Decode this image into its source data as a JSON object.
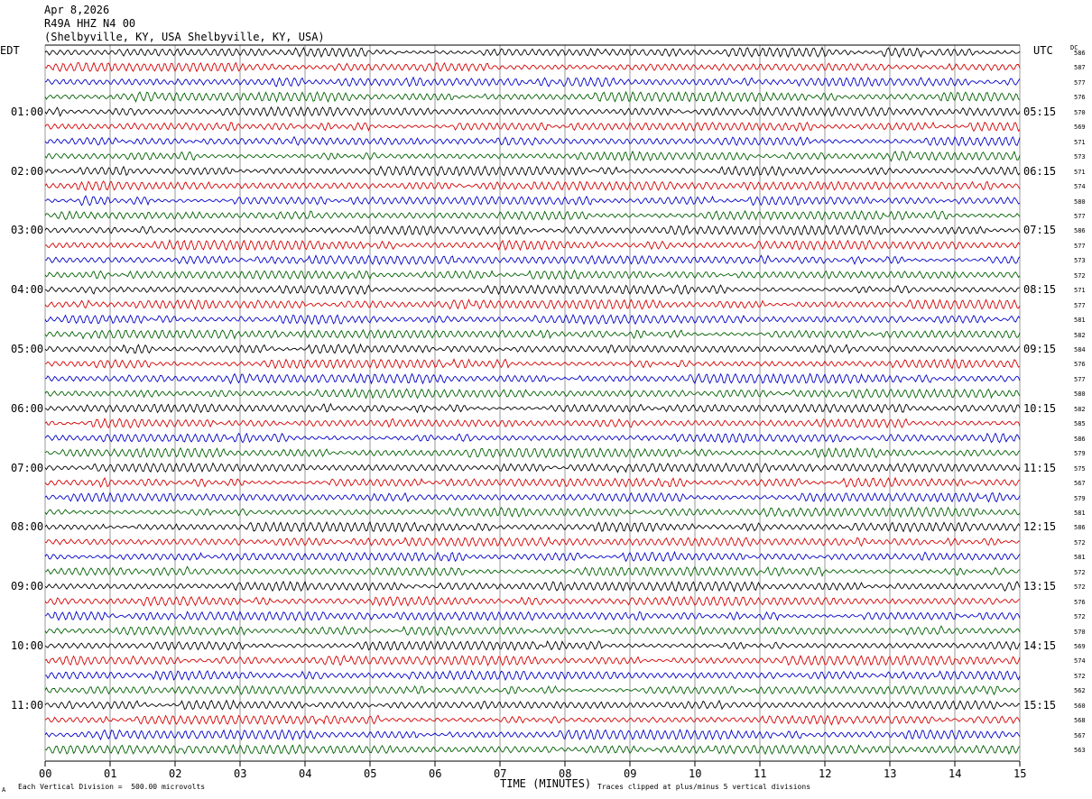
{
  "header": {
    "date": "Apr 8,2026",
    "station": "R49A HHZ N4 00",
    "location": "(Shelbyville, KY, USA Shelbyville, KY, USA)"
  },
  "left_timezone": "EDT",
  "right_timezone": "UTC",
  "dc_label": "DC",
  "footer": {
    "scale_note": "Each Vertical Division =  500.00 microvolts",
    "clip_note": "Traces clipped at plus/minus 5 vertical divisions",
    "corner_mark": "A"
  },
  "chart_data": {
    "type": "line",
    "title": "",
    "xlabel": "TIME (MINUTES)",
    "xlim": [
      0,
      15
    ],
    "x_ticks": [
      "00",
      "01",
      "02",
      "03",
      "04",
      "05",
      "06",
      "07",
      "08",
      "09",
      "10",
      "11",
      "12",
      "13",
      "14",
      "15"
    ],
    "left_hour_labels": [
      "01:00",
      "02:00",
      "03:00",
      "04:00",
      "05:00",
      "06:00",
      "07:00",
      "08:00",
      "09:00",
      "10:00",
      "11:00"
    ],
    "right_hour_labels": [
      "05:15",
      "06:15",
      "07:15",
      "08:15",
      "09:15",
      "10:15",
      "11:15",
      "12:15",
      "13:15",
      "14:15",
      "15:15"
    ],
    "trace_color_cycle": [
      "#000000",
      "#d40000",
      "#0000c8",
      "#006000"
    ],
    "dc_offsets": [
      586,
      587,
      577,
      576,
      570,
      569,
      571,
      573,
      571,
      574,
      580,
      577,
      586,
      577,
      573,
      572,
      571,
      577,
      581,
      582,
      584,
      576,
      577,
      580,
      582,
      585,
      586,
      579,
      575,
      567,
      579,
      581,
      586,
      572,
      581,
      572,
      572,
      576,
      572,
      570,
      569,
      574,
      572,
      562,
      560,
      568,
      567,
      563
    ]
  }
}
